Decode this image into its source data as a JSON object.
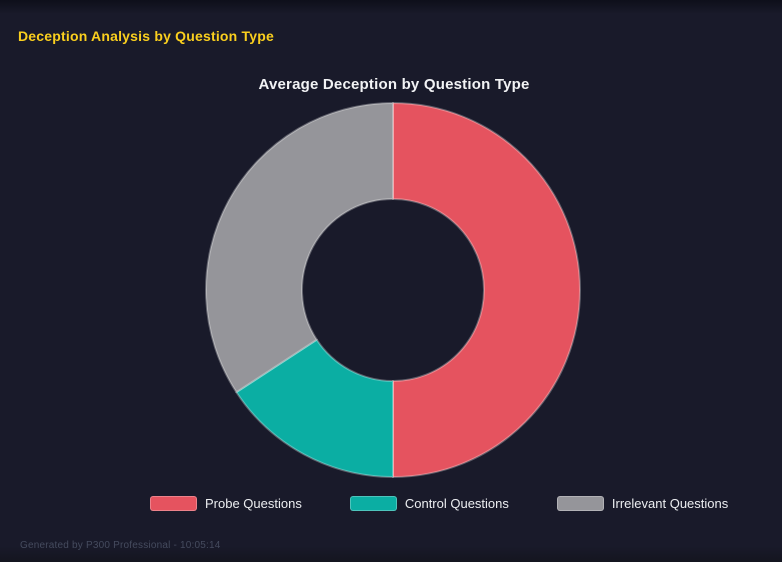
{
  "page": {
    "title": "Deception Analysis by Question Type",
    "title_color": "#FACF1E",
    "background_color": "#191A2A",
    "footer": "Generated by P300 Professional - 10:05:14",
    "footer_color": "#454B5E"
  },
  "chart": {
    "title": "Average Deception by Question Type",
    "title_color": "#F2F3F5",
    "legend": [
      {
        "label": "Probe Questions",
        "color": "#E5535F"
      },
      {
        "label": "Control Questions",
        "color": "#0BAEA3"
      },
      {
        "label": "Irrelevant Questions",
        "color": "#95959A"
      }
    ]
  },
  "chart_data": {
    "type": "pie",
    "variant": "doughnut",
    "title": "Average Deception by Question Type",
    "categories": [
      "Probe Questions",
      "Control Questions",
      "Irrelevant Questions"
    ],
    "values": [
      50.0,
      15.8,
      34.2
    ],
    "value_unit": "percent share of total (estimated from arc angles)",
    "arc_angles_deg": [
      180,
      57,
      123
    ],
    "colors": [
      "#E5535F",
      "#0BAEA3",
      "#95959A"
    ],
    "start_angle": "top, clockwise",
    "inner_radius_ratio": 0.49,
    "legend_position": "bottom",
    "grid": false
  }
}
